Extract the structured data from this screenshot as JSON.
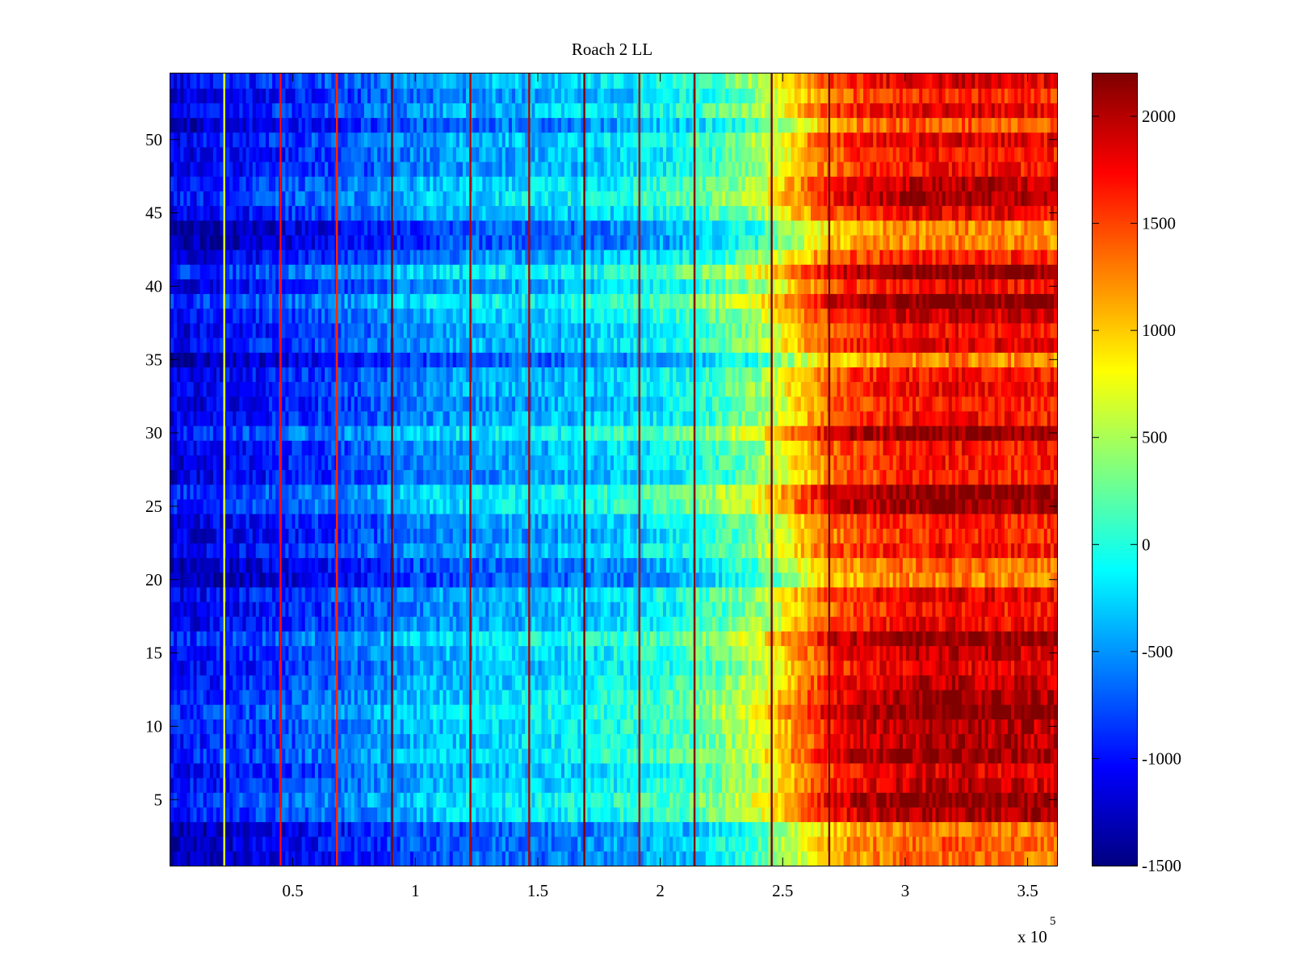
{
  "chart_data": {
    "type": "heatmap",
    "title": "Roach 2 LL",
    "xlabel": "",
    "ylabel": "",
    "x_exponent_label": "x 10",
    "x_exponent": "5",
    "xlim": [
      0,
      3.62
    ],
    "ylim": [
      0.5,
      54.5
    ],
    "x_ticks": [
      0.5,
      1,
      1.5,
      2,
      2.5,
      3,
      3.5
    ],
    "x_tick_labels": [
      "0.5",
      "1",
      "1.5",
      "2",
      "2.5",
      "3",
      "3.5"
    ],
    "y_ticks": [
      5,
      10,
      15,
      20,
      25,
      30,
      35,
      40,
      45,
      50
    ],
    "y_tick_labels": [
      "5",
      "10",
      "15",
      "20",
      "25",
      "30",
      "35",
      "40",
      "45",
      "50"
    ],
    "rows": 54,
    "colormap": "jet",
    "clim": [
      -1500,
      2200
    ],
    "colorbar_ticks": [
      -1500,
      -1000,
      -500,
      0,
      500,
      1000,
      1500,
      2000
    ],
    "colorbar_tick_labels": [
      "-1500",
      "-1000",
      "-500",
      "0",
      "500",
      "1000",
      "1500",
      "2000"
    ],
    "x_profile": {
      "x": [
        0,
        0.25,
        0.5,
        0.75,
        1.0,
        1.25,
        1.5,
        1.75,
        2.0,
        2.2,
        2.4,
        2.5,
        2.6,
        2.7,
        2.8,
        3.0,
        3.2,
        3.4,
        3.62
      ],
      "value": [
        -1150,
        -1050,
        -900,
        -750,
        -550,
        -450,
        -400,
        -300,
        -150,
        50,
        400,
        750,
        1100,
        1400,
        1550,
        1700,
        1750,
        1700,
        1650
      ]
    },
    "bright_rows": [
      1,
      2,
      3,
      20,
      21,
      35,
      43,
      44,
      51
    ],
    "dark_rows": [
      4,
      5,
      6,
      8,
      9,
      10,
      11,
      12,
      13,
      15,
      16,
      25,
      26,
      30,
      38,
      39,
      41,
      46,
      47
    ],
    "vertical_stripes": [
      {
        "x": 0.22,
        "value": 700
      },
      {
        "x": 0.45,
        "value": 1700
      },
      {
        "x": 0.68,
        "value": 1600
      },
      {
        "x": 0.905,
        "value": 2200
      },
      {
        "x": 1.225,
        "value": 2000
      },
      {
        "x": 1.465,
        "value": 2000
      },
      {
        "x": 1.69,
        "value": 2200
      },
      {
        "x": 1.915,
        "value": 2000
      },
      {
        "x": 2.14,
        "value": 2200
      },
      {
        "x": 2.455,
        "value": 2200
      },
      {
        "x": 2.69,
        "value": 2200
      }
    ]
  }
}
